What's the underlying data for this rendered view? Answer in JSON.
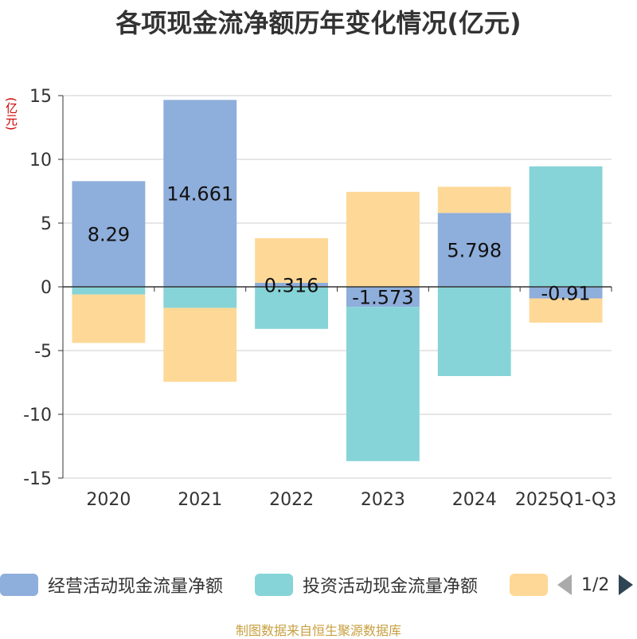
{
  "title": "各项现金流净额历年变化情况(亿元)",
  "unit_label": "(亿元)",
  "source": "制图数据来自恒生聚源数据库",
  "legend": {
    "pager": "1/2",
    "items": [
      {
        "label": "经营活动现金流量净额",
        "color": "#8eaedb"
      },
      {
        "label": "投资活动现金流量净额",
        "color": "#86d4d7"
      },
      {
        "label": "",
        "color": "#fed897"
      }
    ]
  },
  "colors": {
    "axis": "#333333",
    "grid": "#cccccc",
    "text": "#333333"
  },
  "chart_data": {
    "type": "bar",
    "stacked": true,
    "title": "各项现金流净额历年变化情况(亿元)",
    "ylabel": "(亿元)",
    "ylim": [
      -15,
      15
    ],
    "yticks": [
      15,
      10,
      5,
      0,
      -5,
      -10,
      -15
    ],
    "categories": [
      "2020",
      "2021",
      "2022",
      "2023",
      "2024",
      "2025Q1-Q3"
    ],
    "series": [
      {
        "name": "经营活动现金流量净额",
        "color": "#8eaedb",
        "values": [
          8.29,
          14.661,
          0.316,
          -1.573,
          5.798,
          -0.91
        ],
        "labels": [
          "8.29",
          "14.661",
          "0.316",
          "-1.573",
          "5.798",
          "-0.91"
        ]
      },
      {
        "name": "投资活动现金流量净额",
        "color": "#86d4d7",
        "values": [
          -0.6,
          -1.65,
          -3.3,
          -12.1,
          -7.0,
          9.45
        ]
      },
      {
        "name": "",
        "color": "#fed897",
        "values": [
          -3.8,
          -5.8,
          3.5,
          7.45,
          2.05,
          -1.9
        ]
      }
    ]
  }
}
